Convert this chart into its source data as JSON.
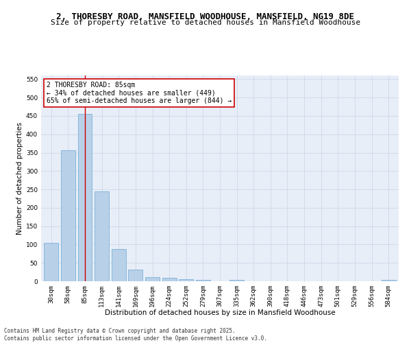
{
  "title": "2, THORESBY ROAD, MANSFIELD WOODHOUSE, MANSFIELD, NG19 8DE",
  "subtitle": "Size of property relative to detached houses in Mansfield Woodhouse",
  "xlabel": "Distribution of detached houses by size in Mansfield Woodhouse",
  "ylabel": "Number of detached properties",
  "categories": [
    "30sqm",
    "58sqm",
    "85sqm",
    "113sqm",
    "141sqm",
    "169sqm",
    "196sqm",
    "224sqm",
    "252sqm",
    "279sqm",
    "307sqm",
    "335sqm",
    "362sqm",
    "390sqm",
    "418sqm",
    "446sqm",
    "473sqm",
    "501sqm",
    "529sqm",
    "556sqm",
    "584sqm"
  ],
  "values": [
    105,
    357,
    456,
    245,
    88,
    31,
    12,
    9,
    5,
    4,
    0,
    4,
    0,
    0,
    0,
    0,
    0,
    0,
    0,
    0,
    4
  ],
  "bar_color": "#b8d0e8",
  "bar_edge_color": "#6aaad4",
  "highlight_index": 2,
  "highlight_line_color": "#cc0000",
  "annotation_text": "2 THORESBY ROAD: 85sqm\n← 34% of detached houses are smaller (449)\n65% of semi-detached houses are larger (844) →",
  "annotation_box_color": "#ffffff",
  "annotation_box_edge": "#cc0000",
  "ylim": [
    0,
    560
  ],
  "yticks": [
    0,
    50,
    100,
    150,
    200,
    250,
    300,
    350,
    400,
    450,
    500,
    550
  ],
  "footer": "Contains HM Land Registry data © Crown copyright and database right 2025.\nContains public sector information licensed under the Open Government Licence v3.0.",
  "fig_bg_color": "#ffffff",
  "plot_bg_color": "#e8eef8",
  "title_fontsize": 9,
  "subtitle_fontsize": 8,
  "axis_label_fontsize": 7.5,
  "tick_fontsize": 6.5,
  "footer_fontsize": 5.5,
  "ann_fontsize": 7
}
